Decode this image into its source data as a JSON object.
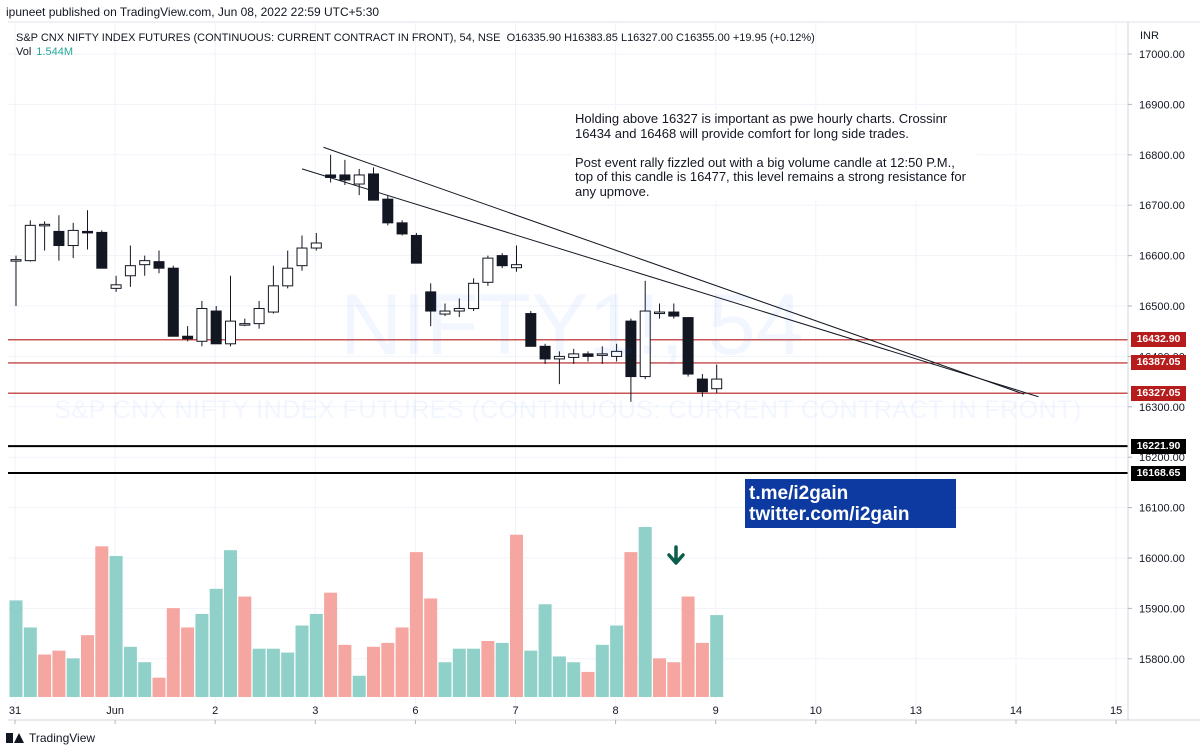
{
  "header": {
    "publisher": "ipuneet published on TradingView.com, Jun 08, 2022 22:59 UTC+5:30"
  },
  "legend": {
    "symbol": "S&P CNX NIFTY INDEX FUTURES (CONTINUOUS: CURRENT CONTRACT IN FRONT), 54, NSE",
    "ohlc": "O16335.90  H16383.85  L16327.00  C16355.00  +19.95 (+0.12%)",
    "vol_label": "Vol",
    "vol_value": "1.544M"
  },
  "currency": "INR",
  "watermark": {
    "symbol": "NIFTY1!, 54",
    "description": "S&P CNX NIFTY INDEX FUTURES (CONTINUOUS: CURRENT CONTRACT IN FRONT)"
  },
  "note": {
    "text": "Holding above 16327 is important as pwe hourly charts. Crossinr 16434 and 16468 will provide comfort for long side trades.\n\nPost event rally fizzled out with a big volume candle at 12:50 P.M., top of this candle is 16477, this level remains a strong resistance for any upmove."
  },
  "social": {
    "line1": "t.me/i2gain",
    "line2": "twitter.com/i2gain"
  },
  "footer": {
    "brand": "TradingView"
  },
  "colors": {
    "volume_up": "#8fd1c8",
    "volume_down": "#f5a6a1",
    "resistance_line": "#b71c1c",
    "support_line": "#000000",
    "social_bg": "#0d3aa0",
    "arrow": "#0b5e4a"
  },
  "chart_data": {
    "type": "candlestick",
    "title": "S&P CNX NIFTY INDEX FUTURES (CONTINUOUS: CURRENT CONTRACT IN FRONT), 54, NSE",
    "y_axis": {
      "min": 15720,
      "max": 17040,
      "ticks": [
        17000,
        16900,
        16800,
        16700,
        16600,
        16500,
        16400,
        16300,
        16200,
        16100,
        16000,
        15900,
        15800
      ],
      "tick_labels": [
        "17000.00",
        "16900.00",
        "16800.00",
        "16700.00",
        "16600.00",
        "16500.00",
        "16400.00",
        "16300.00",
        "16200.00",
        "16100.00",
        "16000.00",
        "15900.00",
        "15800.00"
      ]
    },
    "x_axis": {
      "labels": [
        "31",
        "Jun",
        "2",
        "3",
        "6",
        "7",
        "8",
        "9",
        "10",
        "13",
        "14",
        "15"
      ],
      "label_bar_index": [
        0,
        7,
        14,
        21,
        28,
        35,
        42,
        49,
        56,
        63,
        70,
        77
      ]
    },
    "candles": [
      {
        "o": 16590,
        "h": 16600,
        "l": 16500,
        "c": 16592
      },
      {
        "o": 16590,
        "h": 16670,
        "l": 16588,
        "c": 16660
      },
      {
        "o": 16660,
        "h": 16668,
        "l": 16610,
        "c": 16662
      },
      {
        "o": 16648,
        "h": 16680,
        "l": 16590,
        "c": 16620
      },
      {
        "o": 16620,
        "h": 16665,
        "l": 16595,
        "c": 16650
      },
      {
        "o": 16648,
        "h": 16690,
        "l": 16612,
        "c": 16646
      },
      {
        "o": 16646,
        "h": 16650,
        "l": 16580,
        "c": 16575
      },
      {
        "o": 16535,
        "h": 16560,
        "l": 16528,
        "c": 16542
      },
      {
        "o": 16560,
        "h": 16620,
        "l": 16538,
        "c": 16580
      },
      {
        "o": 16582,
        "h": 16600,
        "l": 16560,
        "c": 16590
      },
      {
        "o": 16588,
        "h": 16610,
        "l": 16565,
        "c": 16575
      },
      {
        "o": 16575,
        "h": 16580,
        "l": 16440,
        "c": 16440
      },
      {
        "o": 16440,
        "h": 16460,
        "l": 16430,
        "c": 16435
      },
      {
        "o": 16430,
        "h": 16510,
        "l": 16420,
        "c": 16495
      },
      {
        "o": 16490,
        "h": 16500,
        "l": 16430,
        "c": 16425
      },
      {
        "o": 16425,
        "h": 16560,
        "l": 16420,
        "c": 16470
      },
      {
        "o": 16465,
        "h": 16475,
        "l": 16460,
        "c": 16465
      },
      {
        "o": 16465,
        "h": 16510,
        "l": 16455,
        "c": 16495
      },
      {
        "o": 16488,
        "h": 16580,
        "l": 16485,
        "c": 16540
      },
      {
        "o": 16540,
        "h": 16610,
        "l": 16535,
        "c": 16575
      },
      {
        "o": 16580,
        "h": 16640,
        "l": 16570,
        "c": 16615
      },
      {
        "o": 16615,
        "h": 16645,
        "l": 16610,
        "c": 16625
      },
      {
        "o": 16760,
        "h": 16800,
        "l": 16745,
        "c": 16755
      },
      {
        "o": 16760,
        "h": 16790,
        "l": 16740,
        "c": 16750
      },
      {
        "o": 16742,
        "h": 16772,
        "l": 16720,
        "c": 16760
      },
      {
        "o": 16762,
        "h": 16775,
        "l": 16710,
        "c": 16710
      },
      {
        "o": 16712,
        "h": 16720,
        "l": 16660,
        "c": 16665
      },
      {
        "o": 16665,
        "h": 16670,
        "l": 16640,
        "c": 16643
      },
      {
        "o": 16640,
        "h": 16645,
        "l": 16585,
        "c": 16585
      },
      {
        "o": 16528,
        "h": 16545,
        "l": 16460,
        "c": 16490
      },
      {
        "o": 16484,
        "h": 16505,
        "l": 16480,
        "c": 16490
      },
      {
        "o": 16490,
        "h": 16515,
        "l": 16478,
        "c": 16495
      },
      {
        "o": 16495,
        "h": 16555,
        "l": 16490,
        "c": 16545
      },
      {
        "o": 16547,
        "h": 16600,
        "l": 16540,
        "c": 16595
      },
      {
        "o": 16600,
        "h": 16605,
        "l": 16575,
        "c": 16580
      },
      {
        "o": 16576,
        "h": 16620,
        "l": 16568,
        "c": 16582
      },
      {
        "o": 16485,
        "h": 16490,
        "l": 16420,
        "c": 16420
      },
      {
        "o": 16420,
        "h": 16425,
        "l": 16385,
        "c": 16395
      },
      {
        "o": 16395,
        "h": 16410,
        "l": 16345,
        "c": 16400
      },
      {
        "o": 16398,
        "h": 16415,
        "l": 16385,
        "c": 16405
      },
      {
        "o": 16405,
        "h": 16410,
        "l": 16390,
        "c": 16400
      },
      {
        "o": 16402,
        "h": 16420,
        "l": 16385,
        "c": 16405
      },
      {
        "o": 16400,
        "h": 16425,
        "l": 16390,
        "c": 16410
      },
      {
        "o": 16470,
        "h": 16475,
        "l": 16310,
        "c": 16360
      },
      {
        "o": 16360,
        "h": 16550,
        "l": 16355,
        "c": 16490
      },
      {
        "o": 16485,
        "h": 16505,
        "l": 16475,
        "c": 16488
      },
      {
        "o": 16488,
        "h": 16505,
        "l": 16475,
        "c": 16480
      },
      {
        "o": 16477,
        "h": 16478,
        "l": 16360,
        "c": 16365
      },
      {
        "o": 16355,
        "h": 16365,
        "l": 16320,
        "c": 16330
      },
      {
        "o": 16335.9,
        "h": 16383.85,
        "l": 16327,
        "c": 16355
      }
    ],
    "volume": [
      {
        "v": 1.62,
        "up": true
      },
      {
        "v": 1.48,
        "up": true
      },
      {
        "v": 1.34,
        "up": false
      },
      {
        "v": 1.36,
        "up": false
      },
      {
        "v": 1.32,
        "up": true
      },
      {
        "v": 1.44,
        "up": false
      },
      {
        "v": 1.9,
        "up": false
      },
      {
        "v": 1.85,
        "up": true
      },
      {
        "v": 1.38,
        "up": true
      },
      {
        "v": 1.3,
        "up": true
      },
      {
        "v": 1.22,
        "up": false
      },
      {
        "v": 1.58,
        "up": false
      },
      {
        "v": 1.48,
        "up": false
      },
      {
        "v": 1.55,
        "up": true
      },
      {
        "v": 1.68,
        "up": true
      },
      {
        "v": 1.88,
        "up": true
      },
      {
        "v": 1.64,
        "up": false
      },
      {
        "v": 1.37,
        "up": true
      },
      {
        "v": 1.37,
        "up": true
      },
      {
        "v": 1.35,
        "up": true
      },
      {
        "v": 1.49,
        "up": true
      },
      {
        "v": 1.55,
        "up": true
      },
      {
        "v": 1.66,
        "up": false
      },
      {
        "v": 1.39,
        "up": false
      },
      {
        "v": 1.23,
        "up": true
      },
      {
        "v": 1.38,
        "up": false
      },
      {
        "v": 1.4,
        "up": false
      },
      {
        "v": 1.48,
        "up": false
      },
      {
        "v": 1.87,
        "up": false
      },
      {
        "v": 1.63,
        "up": false
      },
      {
        "v": 1.3,
        "up": true
      },
      {
        "v": 1.37,
        "up": true
      },
      {
        "v": 1.37,
        "up": true
      },
      {
        "v": 1.41,
        "up": false
      },
      {
        "v": 1.4,
        "up": true
      },
      {
        "v": 1.96,
        "up": false
      },
      {
        "v": 1.36,
        "up": true
      },
      {
        "v": 1.6,
        "up": true
      },
      {
        "v": 1.33,
        "up": true
      },
      {
        "v": 1.3,
        "up": true
      },
      {
        "v": 1.25,
        "up": false
      },
      {
        "v": 1.39,
        "up": true
      },
      {
        "v": 1.49,
        "up": true
      },
      {
        "v": 1.87,
        "up": false
      },
      {
        "v": 2.0,
        "up": true
      },
      {
        "v": 1.32,
        "up": false
      },
      {
        "v": 1.3,
        "up": false
      },
      {
        "v": 1.64,
        "up": false
      },
      {
        "v": 1.4,
        "up": false
      },
      {
        "v": 1.544,
        "up": true
      }
    ],
    "horizontal_lines": [
      {
        "price": 16432.9,
        "label": "16432.90",
        "kind": "resistance"
      },
      {
        "price": 16387.05,
        "label": "16387.05",
        "kind": "resistance"
      },
      {
        "price": 16327.05,
        "label": "16327.05",
        "kind": "resistance"
      },
      {
        "price": 16221.9,
        "label": "16221.90",
        "kind": "support"
      },
      {
        "price": 16168.65,
        "label": "16168.65",
        "kind": "support"
      }
    ],
    "trendlines": [
      {
        "from": {
          "bar": 21.5,
          "price": 16815
        },
        "to": {
          "bar": 70.5,
          "price": 16325
        }
      },
      {
        "from": {
          "bar": 20,
          "price": 16772
        },
        "to": {
          "bar": 71.5,
          "price": 16320
        }
      }
    ]
  }
}
